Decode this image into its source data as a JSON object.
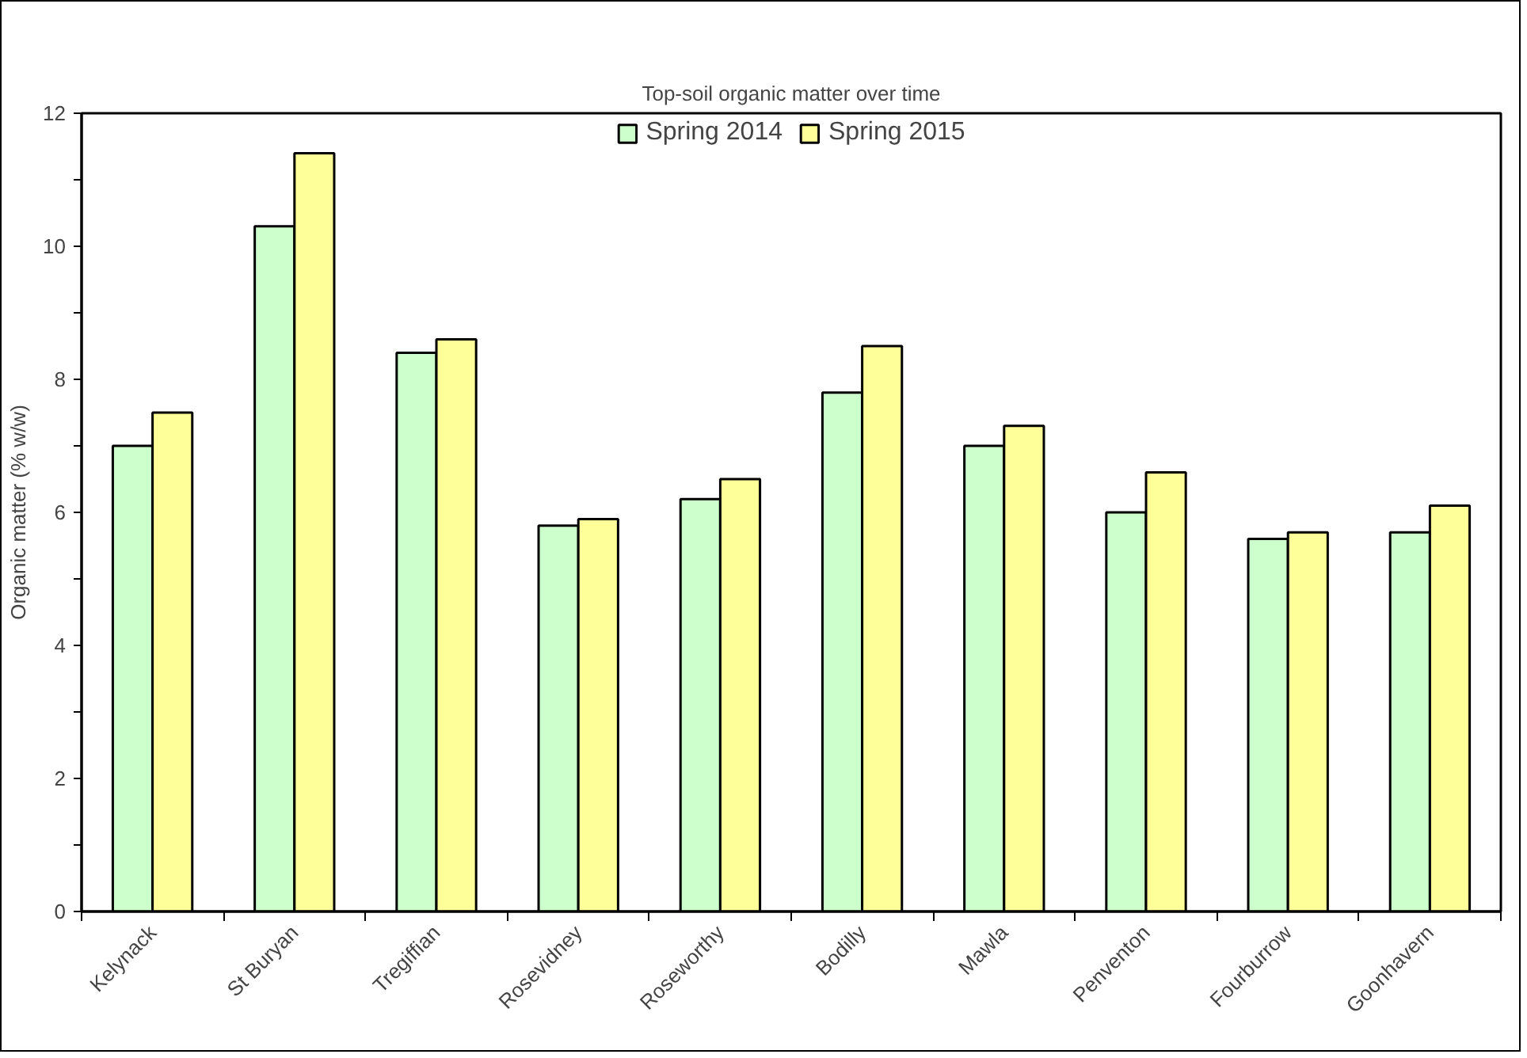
{
  "chart_data": {
    "type": "bar",
    "title": "Top-soil organic matter over time",
    "ylabel": "Organic matter (% w/w)",
    "categories": [
      "Kelynack",
      "St Buryan",
      "Tregiffian",
      "Rosevidney",
      "Roseworthy",
      "Bodilly",
      "Mawla",
      "Penventon",
      "Fourburrow",
      "Goonhavern"
    ],
    "series": [
      {
        "name": "Spring 2014",
        "color": "#ccffcc",
        "values": [
          7.0,
          10.3,
          8.4,
          5.8,
          6.2,
          7.8,
          7.0,
          6.0,
          5.6,
          5.7
        ]
      },
      {
        "name": "Spring 2015",
        "color": "#ffff99",
        "values": [
          7.5,
          11.4,
          8.6,
          5.9,
          6.5,
          8.5,
          7.3,
          6.6,
          5.7,
          6.1
        ]
      }
    ],
    "ylim": [
      0,
      12
    ],
    "yticks": [
      0,
      {
        "value": 1,
        "label": null
      },
      2,
      {
        "value": 3,
        "label": null
      },
      4,
      {
        "value": 5,
        "label": null
      },
      6,
      {
        "value": 7,
        "label": null
      },
      8,
      {
        "value": 9,
        "label": null
      },
      10,
      {
        "value": 11,
        "label": null
      },
      12
    ],
    "grid": false,
    "legend": "top"
  }
}
